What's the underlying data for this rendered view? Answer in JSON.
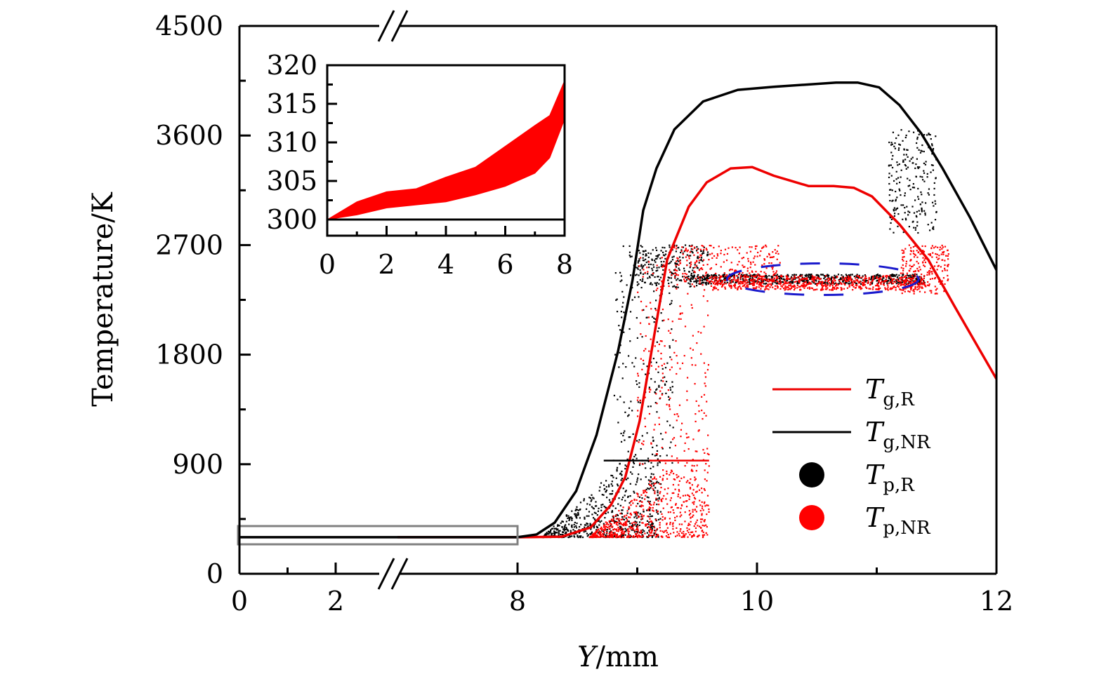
{
  "chart_data": {
    "type": "scatter",
    "title": "",
    "xlabel_italic": "Y",
    "xlabel_unit": "/mm",
    "ylabel": "Temperature/K",
    "x_axis": {
      "broken": true,
      "segments": [
        [
          0,
          2.6
        ],
        [
          8,
          12
        ]
      ],
      "major_ticks": [
        0,
        2,
        8,
        10,
        12
      ],
      "minor_ticks": [
        1,
        9,
        11
      ],
      "tick_labels": [
        "0",
        "2",
        "8",
        "10",
        "12"
      ]
    },
    "y_axis": {
      "ylim": [
        0,
        4500
      ],
      "major_ticks": [
        0,
        900,
        1800,
        2700,
        3600,
        4500
      ],
      "minor_ticks": [
        450,
        1350,
        2250,
        3150,
        4050
      ],
      "tick_labels": [
        "0",
        "900",
        "1800",
        "2700",
        "3600",
        "4500"
      ]
    },
    "series": [
      {
        "name": "T_g,R",
        "label_main": "T",
        "label_sub": "g,R",
        "style": "line",
        "color": "#ee0000",
        "x": [
          0,
          8,
          8.37,
          8.61,
          8.78,
          8.9,
          9.02,
          9.14,
          9.25,
          9.43,
          9.58,
          9.78,
          9.96,
          10.14,
          10.43,
          10.64,
          10.81,
          10.96,
          11.19,
          11.43,
          11.66,
          12.0
        ],
        "y": [
          300,
          300,
          305,
          380,
          565,
          795,
          1255,
          1950,
          2580,
          3015,
          3215,
          3330,
          3340,
          3270,
          3185,
          3185,
          3170,
          3100,
          2870,
          2580,
          2180,
          1600
        ]
      },
      {
        "name": "T_g,NR",
        "label_main": "T",
        "label_sub": "g,NR",
        "style": "line",
        "color": "#000000",
        "x": [
          0,
          8,
          8.16,
          8.31,
          8.49,
          8.66,
          8.84,
          8.96,
          9.05,
          9.16,
          9.31,
          9.55,
          9.84,
          10.14,
          10.66,
          10.84,
          11.02,
          11.19,
          11.37,
          11.55,
          11.78,
          12.0
        ],
        "y": [
          300,
          300,
          323,
          420,
          680,
          1140,
          1830,
          2410,
          2985,
          3330,
          3650,
          3880,
          3975,
          4000,
          4035,
          4035,
          3995,
          3850,
          3620,
          3330,
          2925,
          2495
        ]
      },
      {
        "name": "T_p,R",
        "label_main": "T",
        "label_sub": "p,R",
        "style": "scatter",
        "color": "#000000",
        "description": "particle cloud rising from 300 K near Y=8.2 to a plateau near 2420 K between Y=9.4 and 11.4, with scattered points near Y=11.3 along gas curve",
        "regions": [
          {
            "x_range": [
              8.2,
              9.2
            ],
            "y_range": [
              300,
              950
            ]
          },
          {
            "x_range": [
              8.8,
              9.3
            ],
            "y_range": [
              900,
              2700
            ]
          },
          {
            "x_range": [
              9.0,
              9.6
            ],
            "y_range": [
              2350,
              2700
            ]
          },
          {
            "x_range": [
              9.4,
              11.4
            ],
            "y_range": [
              2380,
              2460
            ]
          },
          {
            "x_range": [
              11.1,
              11.5
            ],
            "y_range": [
              2800,
              3650
            ]
          }
        ]
      },
      {
        "name": "T_p,NR",
        "label_main": "T",
        "label_sub": "p,NR",
        "style": "scatter",
        "color": "#ff0000",
        "description": "particle cloud rising from 300 K near Y=8.6 up to ~2650 K; plateau near 2380 K between Y=9.6 and 11.4",
        "regions": [
          {
            "x_range": [
              8.6,
              9.6
            ],
            "y_range": [
              300,
              950
            ]
          },
          {
            "x_range": [
              9.0,
              9.6
            ],
            "y_range": [
              900,
              2600
            ]
          },
          {
            "x_range": [
              9.3,
              10.2
            ],
            "y_range": [
              2400,
              2700
            ]
          },
          {
            "x_range": [
              9.6,
              11.4
            ],
            "y_range": [
              2330,
              2450
            ]
          },
          {
            "x_range": [
              11.2,
              11.6
            ],
            "y_range": [
              2300,
              2700
            ]
          }
        ]
      }
    ],
    "annotations": [
      {
        "type": "dashed-ellipse",
        "color": "#1a1acc",
        "center": [
          10.55,
          2420
        ],
        "x_radius": 0.8,
        "y_radius": 130
      },
      {
        "type": "highlight-rectangle",
        "color": "#808080",
        "x_range": [
          0,
          8
        ],
        "y_range": [
          245,
          405
        ],
        "note": "region magnified in inset"
      },
      {
        "type": "horizontal-segment",
        "color": "#000000",
        "x_range": [
          8.72,
          9.1
        ],
        "y": 930
      },
      {
        "type": "horizontal-segment",
        "color": "#ee0000",
        "x_range": [
          9.1,
          9.6
        ],
        "y": 930
      }
    ],
    "inset": {
      "type": "area",
      "color": "#ff0000",
      "xlim": [
        0,
        8
      ],
      "ylim": [
        300,
        320
      ],
      "x_ticks": [
        0,
        2,
        4,
        6,
        8
      ],
      "x_tick_labels": [
        "0",
        "2",
        "4",
        "6",
        "8"
      ],
      "y_ticks": [
        300,
        305,
        310,
        315,
        320
      ],
      "y_tick_labels": [
        "300",
        "305",
        "310",
        "315",
        "320"
      ],
      "band_x": [
        0,
        1,
        2,
        3,
        4,
        5,
        6,
        7,
        7.5,
        8
      ],
      "band_lower": [
        300,
        300.6,
        301.5,
        301.9,
        302.3,
        303.2,
        304.3,
        306,
        308,
        313
      ],
      "band_upper": [
        300,
        302.3,
        303.6,
        304,
        305.5,
        306.8,
        309.5,
        312.2,
        313.5,
        318
      ]
    },
    "legend": {
      "placement": "lower-right",
      "items": [
        {
          "main": "T",
          "sub": "g,R",
          "marker": "line",
          "color": "#ee0000"
        },
        {
          "main": "T",
          "sub": "g,NR",
          "marker": "line",
          "color": "#000000"
        },
        {
          "main": "T",
          "sub": "p,R",
          "marker": "dot",
          "color": "#000000"
        },
        {
          "main": "T",
          "sub": "p,NR",
          "marker": "dot",
          "color": "#ff0000"
        }
      ]
    }
  }
}
